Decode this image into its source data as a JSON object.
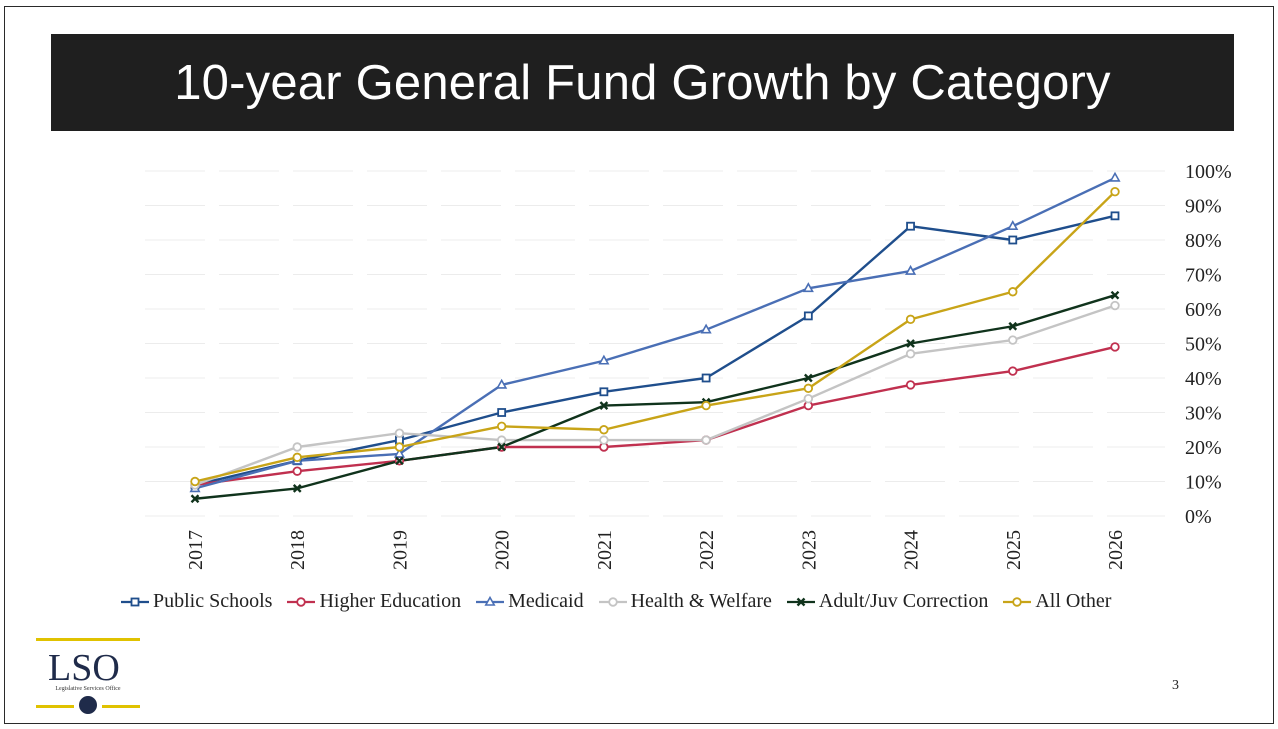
{
  "slide": {
    "title": "10-year General Fund Growth by Category",
    "page_number": "3",
    "logo_text": "LSO",
    "logo_subtext": "Legislative Services Office"
  },
  "colors": {
    "title_bar": "#1f1f1f",
    "logo_accent": "#e0c200"
  },
  "chart_data": {
    "type": "line",
    "title": "",
    "xlabel": "",
    "ylabel": "",
    "x": [
      "2017",
      "2018",
      "2019",
      "2020",
      "2021",
      "2022",
      "2023",
      "2024",
      "2025",
      "2026"
    ],
    "ylim": [
      0,
      100
    ],
    "y_ticks": [
      "0%",
      "10%",
      "20%",
      "30%",
      "40%",
      "50%",
      "60%",
      "70%",
      "80%",
      "90%",
      "100%"
    ],
    "y_axis_position": "right",
    "grid": true,
    "legend_position": "bottom",
    "series": [
      {
        "name": "Public Schools",
        "color": "#1f4e8c",
        "marker": "square",
        "values": [
          9,
          16,
          22,
          30,
          36,
          40,
          58,
          84,
          80,
          87
        ]
      },
      {
        "name": "Higher Education",
        "color": "#c0304f",
        "marker": "circle",
        "values": [
          9,
          13,
          16,
          20,
          20,
          22,
          32,
          38,
          42,
          49
        ]
      },
      {
        "name": "Medicaid",
        "color": "#4a6fb5",
        "marker": "triangle",
        "values": [
          8,
          16,
          18,
          38,
          45,
          54,
          66,
          71,
          84,
          98
        ]
      },
      {
        "name": "Health & Welfare",
        "color": "#c4c4c4",
        "marker": "circle",
        "values": [
          9,
          20,
          24,
          22,
          22,
          22,
          34,
          47,
          51,
          61
        ]
      },
      {
        "name": "Adult/Juv Correction",
        "color": "#10331c",
        "marker": "x",
        "values": [
          5,
          8,
          16,
          20,
          32,
          33,
          40,
          50,
          55,
          64
        ]
      },
      {
        "name": "All Other",
        "color": "#c8a418",
        "marker": "circle",
        "values": [
          10,
          17,
          20,
          26,
          25,
          32,
          37,
          57,
          65,
          94
        ]
      }
    ]
  }
}
